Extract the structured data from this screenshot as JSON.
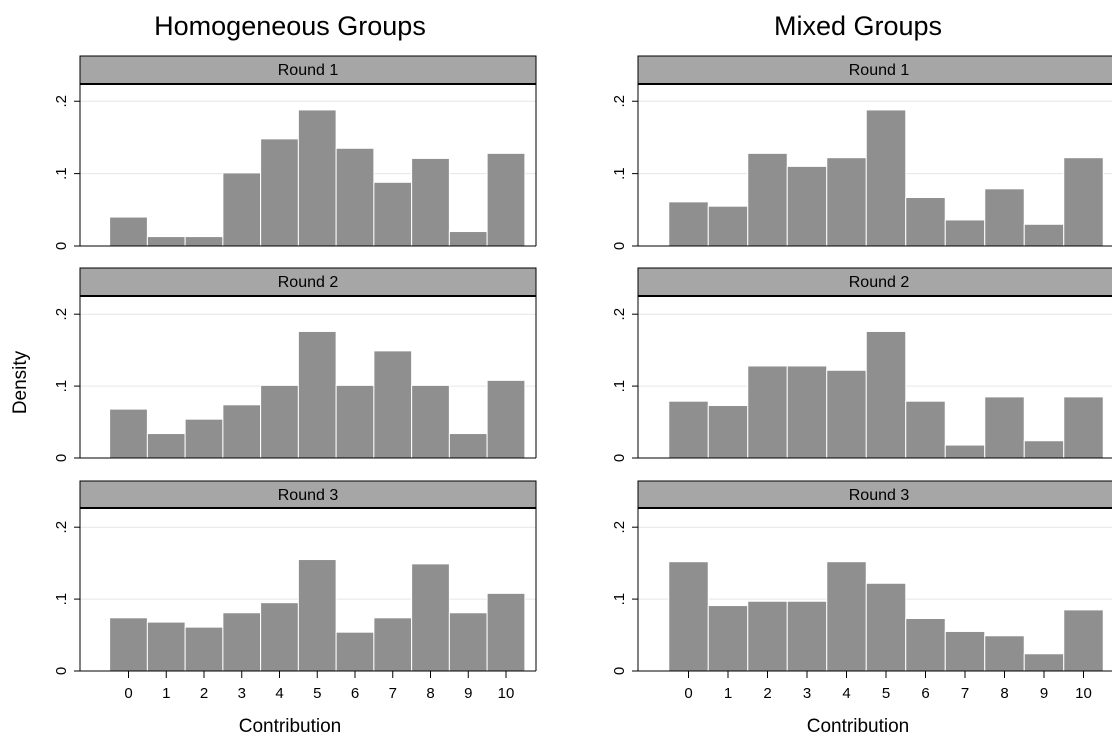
{
  "chart_data": [
    {
      "type": "bar",
      "title": "Homogeneous Groups",
      "ylabel": "Density",
      "xlabel": "Contribution",
      "categories": [
        "0",
        "1",
        "2",
        "3",
        "4",
        "5",
        "6",
        "7",
        "8",
        "9",
        "10"
      ],
      "ylim": [
        0,
        0.21
      ],
      "yticks": [
        "0",
        ".1",
        ".2"
      ],
      "panels": [
        {
          "label": "Round 1",
          "values": [
            0.04,
            0.013,
            0.013,
            0.101,
            0.148,
            0.188,
            0.135,
            0.088,
            0.121,
            0.02,
            0.128
          ]
        },
        {
          "label": "Round 2",
          "values": [
            0.068,
            0.034,
            0.054,
            0.074,
            0.101,
            0.176,
            0.101,
            0.149,
            0.101,
            0.034,
            0.108
          ]
        },
        {
          "label": "Round 3",
          "values": [
            0.074,
            0.068,
            0.061,
            0.081,
            0.095,
            0.155,
            0.054,
            0.074,
            0.149,
            0.081,
            0.108
          ]
        }
      ]
    },
    {
      "type": "bar",
      "title": "Mixed Groups",
      "ylabel": "",
      "xlabel": "Contribution",
      "categories": [
        "0",
        "1",
        "2",
        "3",
        "4",
        "5",
        "6",
        "7",
        "8",
        "9",
        "10"
      ],
      "ylim": [
        0,
        0.21
      ],
      "yticks": [
        "0",
        ".1",
        ".2"
      ],
      "panels": [
        {
          "label": "Round 1",
          "values": [
            0.061,
            0.055,
            0.128,
            0.11,
            0.122,
            0.188,
            0.067,
            0.036,
            0.079,
            0.03,
            0.122
          ]
        },
        {
          "label": "Round 2",
          "values": [
            0.079,
            0.073,
            0.128,
            0.128,
            0.122,
            0.176,
            0.079,
            0.018,
            0.085,
            0.024,
            0.085
          ]
        },
        {
          "label": "Round 3",
          "values": [
            0.152,
            0.091,
            0.097,
            0.097,
            0.152,
            0.122,
            0.073,
            0.055,
            0.049,
            0.024,
            0.085
          ]
        }
      ]
    }
  ],
  "colors": {
    "bar_fill": "#8f8f8f",
    "bar_edge": "#ffffff",
    "strip_fill": "#a6a6a6",
    "gridline": "#e6e6e6"
  }
}
